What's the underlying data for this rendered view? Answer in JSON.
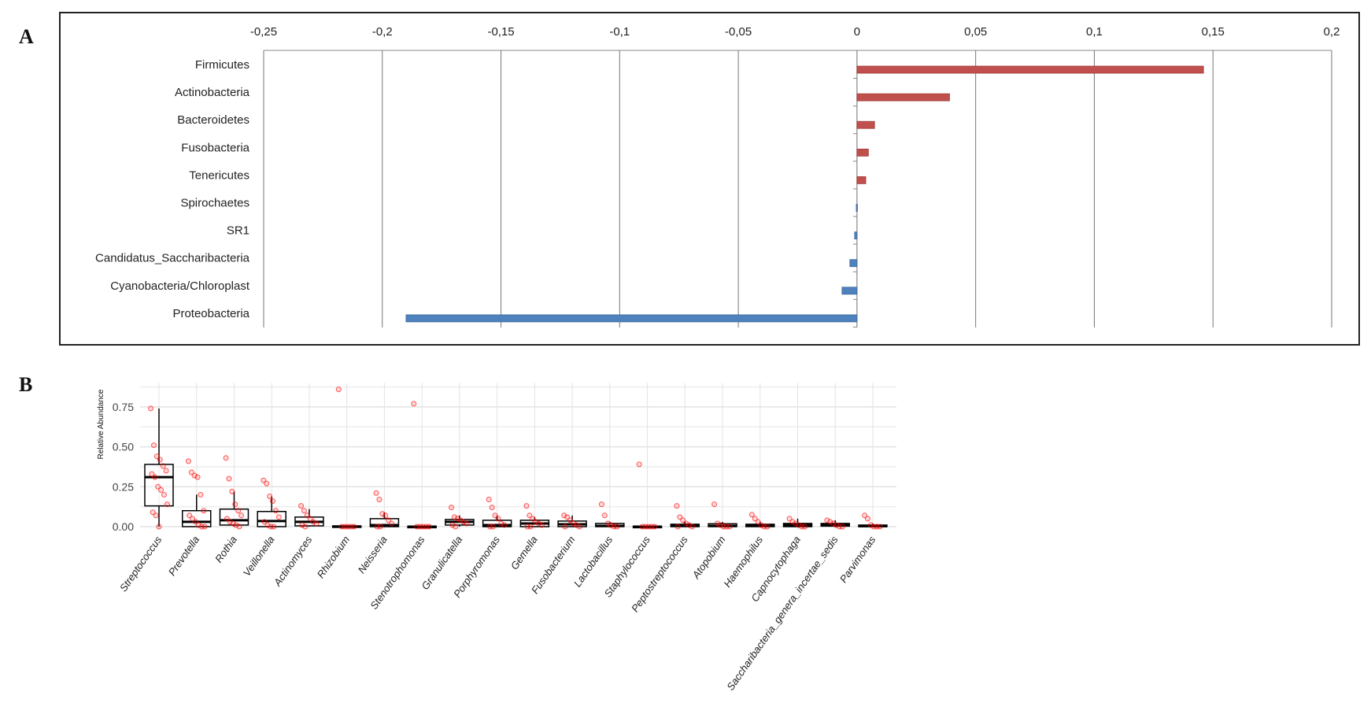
{
  "panels": {
    "a_label": "A",
    "b_label": "B"
  },
  "chart_data": [
    {
      "type": "bar",
      "orientation": "horizontal",
      "categories": [
        "Firmicutes",
        "Actinobacteria",
        "Bacteroidetes",
        "Fusobacteria",
        "Tenericutes",
        "Spirochaetes",
        "SR1",
        "Candidatus_Saccharibacteria",
        "Cyanobacteria/Chloroplast",
        "Proteobacteria"
      ],
      "values": [
        0.146,
        0.039,
        0.0074,
        0.0048,
        0.0037,
        -0.0003,
        -0.001,
        -0.003,
        -0.0063,
        -0.19
      ],
      "xlim": [
        -0.25,
        0.2
      ],
      "xticks": [
        -0.25,
        -0.2,
        -0.15,
        -0.1,
        -0.05,
        0,
        0.05,
        0.1,
        0.15,
        0.2
      ],
      "xtick_labels": [
        "-0,25",
        "-0,2",
        "-0,15",
        "-0,1",
        "-0,05",
        "0",
        "0,05",
        "0,1",
        "0,15",
        "0,2"
      ],
      "grid": true,
      "colors": {
        "positive": "#c0504d",
        "negative": "#4f81bd"
      }
    },
    {
      "type": "box",
      "ylabel": "Relative Abundance",
      "ylim": [
        0,
        0.9
      ],
      "yticks": [
        0,
        0.25,
        0.5,
        0.75
      ],
      "ytick_labels": [
        "0.00",
        "0.25",
        "0.50",
        "0.75"
      ],
      "grid": true,
      "point_color": "#ff0000",
      "categories": [
        "Streptococcus",
        "Prevotella",
        "Rothia",
        "Veillonella",
        "Actinomyces",
        "Rhizobium",
        "Neisseria",
        "Stenotrophomonas",
        "Granulicatella",
        "Porphyromonas",
        "Gemella",
        "Fusobacterium",
        "Lactobacillus",
        "Staphylococcus",
        "Peptostreptococcus",
        "Atopobium",
        "Haemophilus",
        "Capnocytophaga",
        "Saccharibacteria_genera_incertae_sedis",
        "Parvimonas"
      ],
      "boxes": [
        {
          "low": 0,
          "q1": 0.13,
          "median": 0.31,
          "q3": 0.39,
          "high": 0.74,
          "points": [
            0.74,
            0.51,
            0.44,
            0.42,
            0.38,
            0.35,
            0.33,
            0.31,
            0.25,
            0.23,
            0.2,
            0.14,
            0.09,
            0.07,
            0.0
          ]
        },
        {
          "low": 0,
          "q1": 0,
          "median": 0.03,
          "q3": 0.1,
          "high": 0.2,
          "points": [
            0.41,
            0.34,
            0.32,
            0.31,
            0.2,
            0.1,
            0.07,
            0.05,
            0.03,
            0.01,
            0.0,
            0.0
          ]
        },
        {
          "low": 0,
          "q1": 0.01,
          "median": 0.04,
          "q3": 0.11,
          "high": 0.22,
          "points": [
            0.43,
            0.3,
            0.22,
            0.14,
            0.1,
            0.07,
            0.05,
            0.03,
            0.02,
            0.01,
            0.0
          ]
        },
        {
          "low": 0,
          "q1": 0,
          "median": 0.035,
          "q3": 0.095,
          "high": 0.19,
          "points": [
            0.29,
            0.27,
            0.19,
            0.16,
            0.1,
            0.06,
            0.03,
            0.01,
            0.0,
            0.0
          ]
        },
        {
          "low": 0,
          "q1": 0.005,
          "median": 0.03,
          "q3": 0.06,
          "high": 0.11,
          "points": [
            0.13,
            0.1,
            0.07,
            0.05,
            0.03,
            0.02,
            0.01,
            0.0
          ]
        },
        {
          "low": 0,
          "q1": 0,
          "median": 0,
          "q3": 0.005,
          "high": 0.005,
          "points": [
            0.86,
            0.0,
            0.0,
            0.0,
            0.0,
            0.0
          ]
        },
        {
          "low": 0,
          "q1": 0,
          "median": 0.01,
          "q3": 0.05,
          "high": 0.09,
          "points": [
            0.21,
            0.17,
            0.08,
            0.07,
            0.04,
            0.02,
            0.0,
            0.0
          ]
        },
        {
          "low": 0,
          "q1": 0,
          "median": 0,
          "q3": 0.003,
          "high": 0.003,
          "points": [
            0.77,
            0.0,
            0.0,
            0.0,
            0.0,
            0.0
          ]
        },
        {
          "low": 0,
          "q1": 0.01,
          "median": 0.03,
          "q3": 0.045,
          "high": 0.07,
          "points": [
            0.12,
            0.06,
            0.05,
            0.04,
            0.03,
            0.02,
            0.01,
            0.0
          ]
        },
        {
          "low": 0,
          "q1": 0,
          "median": 0.01,
          "q3": 0.04,
          "high": 0.07,
          "points": [
            0.17,
            0.12,
            0.07,
            0.05,
            0.02,
            0.01,
            0.0,
            0.0
          ]
        },
        {
          "low": 0,
          "q1": 0,
          "median": 0.02,
          "q3": 0.04,
          "high": 0.06,
          "points": [
            0.13,
            0.07,
            0.05,
            0.03,
            0.02,
            0.01,
            0.0,
            0.0
          ]
        },
        {
          "low": 0,
          "q1": 0,
          "median": 0.015,
          "q3": 0.035,
          "high": 0.07,
          "points": [
            0.07,
            0.06,
            0.04,
            0.02,
            0.01,
            0.0,
            0.0
          ]
        },
        {
          "low": 0,
          "q1": 0,
          "median": 0.005,
          "q3": 0.02,
          "high": 0.03,
          "points": [
            0.14,
            0.07,
            0.02,
            0.01,
            0.0,
            0.0
          ]
        },
        {
          "low": 0,
          "q1": 0,
          "median": 0,
          "q3": 0.003,
          "high": 0.003,
          "points": [
            0.39,
            0.0,
            0.0,
            0.0,
            0.0,
            0.0
          ]
        },
        {
          "low": 0,
          "q1": 0,
          "median": 0.005,
          "q3": 0.015,
          "high": 0.03,
          "points": [
            0.13,
            0.06,
            0.04,
            0.02,
            0.01,
            0.0,
            0.0
          ]
        },
        {
          "low": 0,
          "q1": 0,
          "median": 0.005,
          "q3": 0.018,
          "high": 0.03,
          "points": [
            0.14,
            0.02,
            0.01,
            0.0,
            0.0,
            0.0
          ]
        },
        {
          "low": 0,
          "q1": 0,
          "median": 0.005,
          "q3": 0.015,
          "high": 0.03,
          "points": [
            0.075,
            0.05,
            0.03,
            0.01,
            0.0,
            0.0
          ]
        },
        {
          "low": 0,
          "q1": 0,
          "median": 0.01,
          "q3": 0.02,
          "high": 0.05,
          "points": [
            0.05,
            0.03,
            0.02,
            0.01,
            0.0,
            0.0
          ]
        },
        {
          "low": 0,
          "q1": 0.003,
          "median": 0.01,
          "q3": 0.02,
          "high": 0.04,
          "points": [
            0.04,
            0.03,
            0.02,
            0.01,
            0.0,
            0.0
          ]
        },
        {
          "low": 0,
          "q1": 0,
          "median": 0.003,
          "q3": 0.01,
          "high": 0.02,
          "points": [
            0.07,
            0.05,
            0.01,
            0.0,
            0.0,
            0.0
          ]
        }
      ]
    }
  ]
}
